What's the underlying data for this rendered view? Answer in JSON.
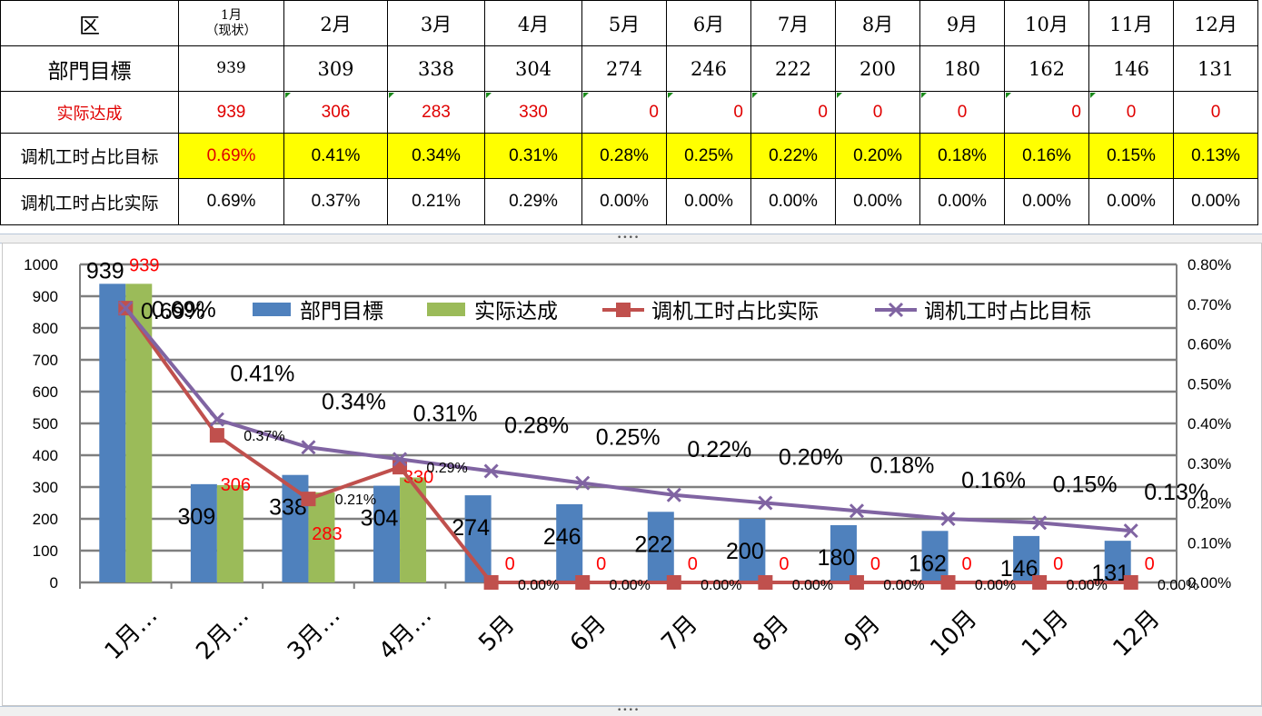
{
  "table": {
    "header": {
      "label": "区",
      "jan_line1": "1月",
      "jan_line2": "（现状）",
      "months": [
        "2月",
        "3月",
        "4月",
        "5月",
        "6月",
        "7月",
        "8月",
        "9月",
        "10月",
        "11月",
        "12月"
      ]
    },
    "rows": [
      {
        "label": "部門目標",
        "values": [
          "939",
          "309",
          "338",
          "304",
          "274",
          "246",
          "222",
          "200",
          "180",
          "162",
          "146",
          "131"
        ]
      },
      {
        "label": "实际达成",
        "values": [
          "939",
          "306",
          "283",
          "330",
          "0",
          "0",
          "0",
          "0",
          "0",
          "0",
          "0",
          "0"
        ]
      },
      {
        "label": "调机工时占比目标",
        "values": [
          "0.69%",
          "0.41%",
          "0.34%",
          "0.31%",
          "0.28%",
          "0.25%",
          "0.22%",
          "0.20%",
          "0.18%",
          "0.16%",
          "0.15%",
          "0.13%"
        ]
      },
      {
        "label": "调机工时占比实际",
        "values": [
          "0.69%",
          "0.37%",
          "0.21%",
          "0.29%",
          "0.00%",
          "0.00%",
          "0.00%",
          "0.00%",
          "0.00%",
          "0.00%",
          "0.00%",
          "0.00%"
        ]
      }
    ]
  },
  "chart_data": {
    "type": "bar",
    "categories": [
      "1月…",
      "2月…",
      "3月…",
      "4月…",
      "5月",
      "6月",
      "7月",
      "8月",
      "9月",
      "10月",
      "11月",
      "12月"
    ],
    "series": [
      {
        "name": "部門目標",
        "kind": "bar",
        "axis": "left",
        "color": "#4f81bd",
        "values": [
          939,
          309,
          338,
          304,
          274,
          246,
          222,
          200,
          180,
          162,
          146,
          131
        ],
        "labels": [
          "939",
          "309",
          "338",
          "304",
          "274",
          "246",
          "222",
          "200",
          "180",
          "162",
          "146",
          "131"
        ],
        "label_color": "#000000"
      },
      {
        "name": "实际达成",
        "kind": "bar",
        "axis": "left",
        "color": "#9bbb59",
        "values": [
          939,
          306,
          283,
          330,
          0,
          0,
          0,
          0,
          0,
          0,
          0,
          0
        ],
        "labels": [
          "939",
          "306",
          "283",
          "330",
          "0",
          "0",
          "0",
          "0",
          "0",
          "0",
          "0",
          "0"
        ],
        "label_color": "#ff0000"
      },
      {
        "name": "调机工时占比实际",
        "kind": "line",
        "axis": "right",
        "marker": "square",
        "color": "#c0504d",
        "values": [
          0.69,
          0.37,
          0.21,
          0.29,
          0,
          0,
          0,
          0,
          0,
          0,
          0,
          0
        ],
        "labels": [
          "0.69%",
          "0.37%",
          "0.21%",
          "0.29%",
          "0.00%",
          "0.00%",
          "0.00%",
          "0.00%",
          "0.00%",
          "0.00%",
          "0.00%",
          "0.00%"
        ]
      },
      {
        "name": "调机工时占比目标",
        "kind": "line",
        "axis": "right",
        "marker": "x",
        "color": "#8064a2",
        "values": [
          0.69,
          0.41,
          0.34,
          0.31,
          0.28,
          0.25,
          0.22,
          0.2,
          0.18,
          0.16,
          0.15,
          0.13
        ],
        "labels": [
          "0.69%",
          "0.41%",
          "0.34%",
          "0.31%",
          "0.28%",
          "0.25%",
          "0.22%",
          "0.20%",
          "0.18%",
          "0.16%",
          "0.15%",
          "0.13%"
        ]
      }
    ],
    "y_left": {
      "min": 0,
      "max": 1000,
      "step": 100,
      "ticks": [
        "0",
        "100",
        "200",
        "300",
        "400",
        "500",
        "600",
        "700",
        "800",
        "900",
        "1000"
      ]
    },
    "y_right": {
      "min": 0,
      "max": 0.8,
      "step": 0.1,
      "ticks": [
        "0.00%",
        "0.10%",
        "0.20%",
        "0.30%",
        "0.40%",
        "0.50%",
        "0.60%",
        "0.70%",
        "0.80%"
      ]
    },
    "grid": true,
    "legend": "top"
  }
}
